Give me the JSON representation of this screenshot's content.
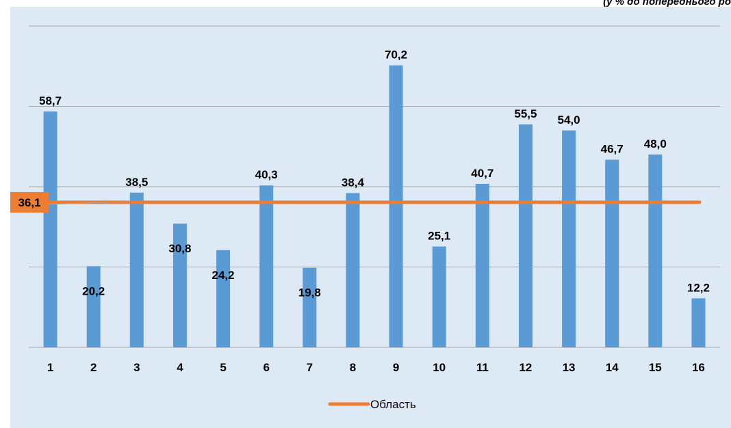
{
  "top_note": "(у % до попереднього ро",
  "chart_data": {
    "type": "bar",
    "categories": [
      "1",
      "2",
      "3",
      "4",
      "5",
      "6",
      "7",
      "8",
      "9",
      "10",
      "11",
      "12",
      "13",
      "14",
      "15",
      "16"
    ],
    "series": [
      {
        "values": [
          58.7,
          20.2,
          38.5,
          30.8,
          24.2,
          40.3,
          19.8,
          38.4,
          70.2,
          25.1,
          40.7,
          55.5,
          54.0,
          46.7,
          48.0,
          12.2
        ],
        "labels": [
          "58,7",
          "20,2",
          "38,5",
          "30,8",
          "24,2",
          "40,3",
          "19,8",
          "38,4",
          "70,2",
          "25,1",
          "40,7",
          "55,5",
          "54,0",
          "46,7",
          "48,0",
          "12,2"
        ],
        "color": "#5b9bd5"
      },
      {
        "name": "Область",
        "type": "line",
        "value": 36.1,
        "label": "36,1",
        "color": "#ed7d31"
      }
    ],
    "ylim": [
      0,
      80
    ],
    "grid": true,
    "legend": "bottom"
  }
}
